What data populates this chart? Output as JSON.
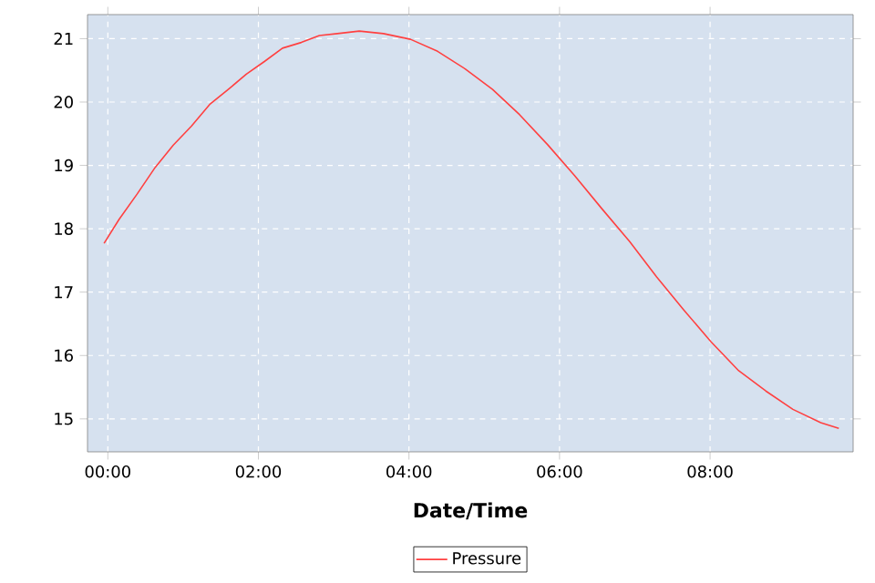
{
  "chart_data": {
    "type": "line",
    "xlabel": "Date/Time",
    "x": [
      -0.05,
      0.15,
      0.39,
      0.63,
      0.87,
      1.11,
      1.36,
      1.6,
      1.84,
      2.08,
      2.32,
      2.57,
      2.81,
      3.05,
      3.34,
      3.66,
      4.02,
      4.38,
      4.75,
      5.11,
      5.47,
      5.84,
      6.2,
      6.56,
      6.93,
      7.29,
      7.65,
      8.01,
      8.38,
      8.74,
      9.1,
      9.47,
      9.71
    ],
    "series": [
      {
        "name": "Pressure",
        "color": "#ff4040",
        "values": [
          17.77,
          18.15,
          18.55,
          18.97,
          19.32,
          19.62,
          19.97,
          20.2,
          20.44,
          20.64,
          20.85,
          20.94,
          21.05,
          21.08,
          21.12,
          21.08,
          20.99,
          20.8,
          20.52,
          20.2,
          19.8,
          19.33,
          18.84,
          18.32,
          17.8,
          17.24,
          16.72,
          16.22,
          15.76,
          15.44,
          15.15,
          14.94,
          14.85
        ]
      }
    ],
    "xlim": [
      -0.27,
      9.9
    ],
    "ylim": [
      14.48,
      21.38
    ],
    "xticks": [
      {
        "value": 0,
        "label": "00:00"
      },
      {
        "value": 2,
        "label": "02:00"
      },
      {
        "value": 4,
        "label": "04:00"
      },
      {
        "value": 6,
        "label": "06:00"
      },
      {
        "value": 8,
        "label": "08:00"
      }
    ],
    "yticks": [
      15,
      16,
      17,
      18,
      19,
      20,
      21
    ],
    "grid": true,
    "legend": "bottom",
    "marker": "none",
    "line_style": "solid"
  }
}
